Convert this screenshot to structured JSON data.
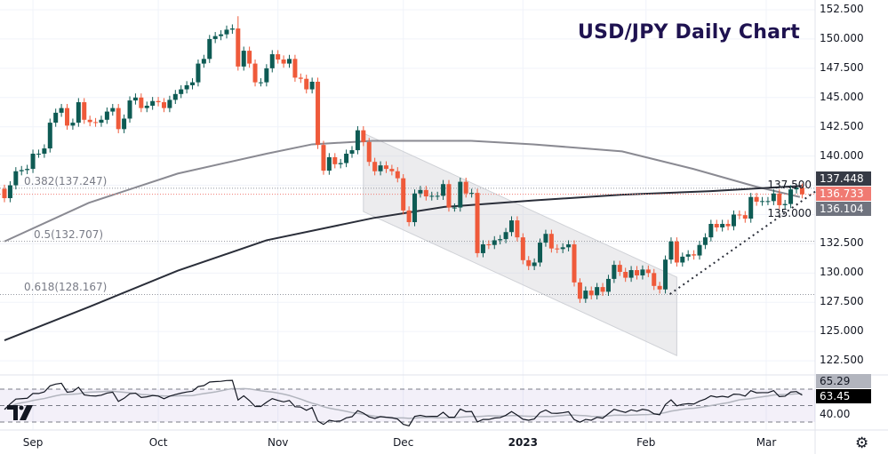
{
  "chart_data": {
    "type": "candlestick",
    "title": "USD/JPY Daily Chart",
    "ylim": [
      122.5,
      152.5
    ],
    "y_ticks": [
      "152.500",
      "150.000",
      "147.500",
      "145.000",
      "142.500",
      "140.000",
      "137.500",
      "135.000",
      "132.500",
      "130.000",
      "127.500",
      "125.000",
      "122.500"
    ],
    "y_tick_values": [
      152.5,
      150,
      147.5,
      145,
      142.5,
      140,
      137.5,
      135,
      132.5,
      130,
      127.5,
      125,
      122.5
    ],
    "x_labels": [
      {
        "label": "Sep",
        "index": 5
      },
      {
        "label": "Oct",
        "index": 27
      },
      {
        "label": "Nov",
        "index": 48
      },
      {
        "label": "Dec",
        "index": 70
      },
      {
        "label": "2023",
        "index": 91,
        "bold": true
      },
      {
        "label": "Feb",
        "index": 112.6
      },
      {
        "label": "Mar",
        "index": 133.7
      }
    ],
    "first_open": 137.2,
    "closes": [
      136.4,
      137.5,
      138.7,
      138.8,
      138.9,
      140.2,
      140.2,
      140.65,
      142.85,
      143.7,
      144.1,
      142.6,
      142.85,
      144.6,
      143.1,
      142.9,
      142.85,
      143.1,
      143.8,
      144.1,
      142.3,
      143.2,
      144.75,
      145.0,
      144.1,
      144.3,
      144.7,
      144.6,
      144.1,
      144.8,
      145.3,
      145.7,
      146.05,
      146.3,
      147.9,
      148.3,
      150.0,
      150.25,
      150.4,
      150.8,
      150.9,
      147.65,
      149.0,
      147.9,
      146.3,
      146.3,
      147.5,
      148.7,
      148.25,
      147.9,
      148.3,
      146.7,
      146.6,
      145.7,
      146.35,
      140.95,
      138.75,
      139.9,
      139.3,
      139.4,
      140.2,
      140.5,
      142.2,
      141.2,
      139.5,
      138.7,
      139.2,
      138.9,
      138.7,
      138.1,
      135.35,
      134.35,
      136.8,
      137.1,
      136.55,
      136.6,
      136.6,
      137.6,
      135.6,
      135.6,
      137.8,
      136.8,
      136.85,
      131.7,
      132.45,
      132.4,
      132.8,
      132.9,
      133.5,
      134.5,
      133.05,
      131.1,
      130.6,
      130.9,
      132.6,
      133.35,
      132.1,
      132.05,
      132.2,
      132.45,
      129.2,
      127.8,
      128.5,
      128.1,
      128.8,
      128.4,
      129.5,
      130.7,
      130.1,
      129.6,
      130.25,
      129.8,
      130.3,
      130.0,
      128.9,
      128.6,
      131.15,
      132.7,
      130.9,
      131.4,
      131.6,
      131.5,
      132.4,
      133.05,
      134.2,
      133.9,
      134.2,
      134.0,
      135.0,
      134.95,
      134.65,
      136.5,
      136.1,
      136.15,
      136.15,
      136.8,
      135.8,
      135.9,
      137.15,
      137.3,
      136.73
    ],
    "notable_high": {
      "index": 41,
      "value": 151.95
    },
    "ma_light": {
      "points": [
        [
          0,
          132.7
        ],
        [
          14.8,
          136.0
        ],
        [
          30.4,
          138.5
        ],
        [
          46,
          140.2
        ],
        [
          54,
          141.0
        ],
        [
          64.7,
          141.3
        ],
        [
          81.9,
          141.3
        ],
        [
          92.8,
          141.0
        ],
        [
          108.4,
          140.4
        ],
        [
          120.9,
          138.9
        ],
        [
          131.8,
          137.4
        ],
        [
          139.6,
          136.5
        ]
      ],
      "last": "136.104"
    },
    "ma_dark": {
      "points": [
        [
          0,
          124.25
        ],
        [
          14.8,
          127.1
        ],
        [
          30.4,
          130.2
        ],
        [
          46,
          132.8
        ],
        [
          64.7,
          134.7
        ],
        [
          77.2,
          135.65
        ],
        [
          92.8,
          136.2
        ],
        [
          108.4,
          136.7
        ],
        [
          124,
          137.0
        ],
        [
          140,
          137.45
        ]
      ],
      "last": "137.448"
    },
    "last_price": "136.733",
    "fib_levels": [
      {
        "label": "0.382(137.247)",
        "value": 137.247
      },
      {
        "label": "0.5(132.707)",
        "value": 132.707
      },
      {
        "label": "0.618(128.167)",
        "value": 128.167
      }
    ],
    "channel": {
      "start_index": 63,
      "end_index": 118,
      "upper": [
        141.95,
        129.65
      ],
      "lower": [
        135.25,
        122.95
      ]
    },
    "trendline": {
      "start": [
        116.8,
        128.2
      ],
      "end": [
        142.4,
        137.0
      ]
    },
    "rsi": {
      "period": 14,
      "levels": [
        70,
        50,
        30
      ],
      "tick": "40.00",
      "ma_value": "65.29",
      "value": "63.45"
    }
  },
  "colors": {
    "up": "#0e5b54",
    "down": "#ef5a3a",
    "ma_light": "#8a8a92",
    "ma_dark": "#2a2e39",
    "title": "#1e1250",
    "last_price": "#f07a72",
    "ma_dark_tag": "#363a45",
    "ma_light_tag": "#6f737e"
  },
  "icons": {
    "settings": "gear-icon",
    "logo": "tradingview-logo"
  }
}
